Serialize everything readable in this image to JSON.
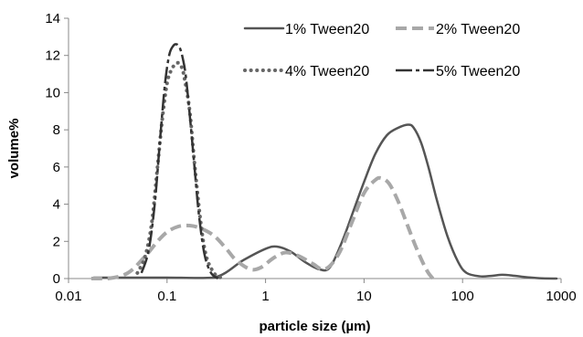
{
  "chart_data": {
    "type": "line",
    "xlabel": "particle size (µm)",
    "ylabel": "volume%",
    "xscale": "log",
    "xlim": [
      0.01,
      1000
    ],
    "ylim": [
      0,
      14
    ],
    "x_ticks": [
      {
        "value": 0.01,
        "label": "0.01"
      },
      {
        "value": 0.1,
        "label": "0.1"
      },
      {
        "value": 1,
        "label": "1"
      },
      {
        "value": 10,
        "label": "10"
      },
      {
        "value": 100,
        "label": "100"
      },
      {
        "value": 1000,
        "label": "1000"
      }
    ],
    "y_ticks": [
      {
        "value": 0,
        "label": "0"
      },
      {
        "value": 2,
        "label": "2"
      },
      {
        "value": 4,
        "label": "4"
      },
      {
        "value": 6,
        "label": "6"
      },
      {
        "value": 8,
        "label": "8"
      },
      {
        "value": 10,
        "label": "10"
      },
      {
        "value": 12,
        "label": "12"
      },
      {
        "value": 14,
        "label": "14"
      }
    ],
    "grid": false,
    "legend_position": "top-right",
    "series": [
      {
        "name": "1% Tween20",
        "style": "solid",
        "color": "#555555",
        "x": [
          0.018,
          0.05,
          0.1,
          0.3,
          0.6,
          1.0,
          1.3,
          1.8,
          2.5,
          3.5,
          4.5,
          6,
          8,
          10,
          13,
          17,
          22,
          28,
          32,
          38,
          45,
          55,
          70,
          90,
          110,
          150,
          200,
          250,
          300,
          400,
          600,
          900
        ],
        "y": [
          0.05,
          0.05,
          0.05,
          0.05,
          1.0,
          1.6,
          1.72,
          1.45,
          0.9,
          0.5,
          0.6,
          2.0,
          3.8,
          5.2,
          6.7,
          7.7,
          8.1,
          8.28,
          8.1,
          7.3,
          6.0,
          4.2,
          2.3,
          0.9,
          0.3,
          0.12,
          0.15,
          0.2,
          0.18,
          0.1,
          0.02,
          0.0
        ]
      },
      {
        "name": "2% Tween20",
        "style": "dashed",
        "color": "#a8a8a8",
        "x": [
          0.017,
          0.025,
          0.04,
          0.06,
          0.08,
          0.1,
          0.13,
          0.17,
          0.22,
          0.3,
          0.4,
          0.5,
          0.7,
          0.9,
          1.2,
          1.6,
          2.2,
          3,
          4,
          5.5,
          7.5,
          10,
          13,
          15,
          18,
          22,
          27,
          33,
          40,
          45,
          50
        ],
        "y": [
          0.0,
          0.0,
          0.3,
          1.2,
          2.0,
          2.5,
          2.8,
          2.85,
          2.7,
          2.3,
          1.6,
          1.0,
          0.5,
          0.6,
          1.1,
          1.4,
          1.2,
          0.8,
          0.5,
          1.3,
          3.0,
          4.6,
          5.3,
          5.4,
          5.1,
          4.2,
          3.0,
          1.8,
          0.8,
          0.3,
          0.0
        ]
      },
      {
        "name": "4% Tween20",
        "style": "dotted",
        "color": "#666666",
        "x": [
          0.05,
          0.06,
          0.07,
          0.08,
          0.09,
          0.1,
          0.11,
          0.12,
          0.13,
          0.14,
          0.15,
          0.17,
          0.19,
          0.22,
          0.25,
          0.3,
          0.35
        ],
        "y": [
          0.3,
          1.2,
          3.0,
          6.0,
          8.7,
          10.5,
          11.2,
          11.5,
          11.6,
          11.4,
          10.8,
          9.0,
          6.2,
          3.0,
          1.2,
          0.3,
          0.05
        ]
      },
      {
        "name": "5% Tween20",
        "style": "longdash",
        "color": "#333333",
        "x": [
          0.055,
          0.065,
          0.075,
          0.085,
          0.095,
          0.105,
          0.115,
          0.125,
          0.135,
          0.145,
          0.155,
          0.17,
          0.19,
          0.21,
          0.24,
          0.28,
          0.33
        ],
        "y": [
          0.3,
          1.5,
          4.0,
          7.5,
          10.4,
          12.0,
          12.5,
          12.6,
          12.4,
          11.8,
          10.9,
          8.8,
          6.0,
          3.5,
          1.3,
          0.3,
          0.0
        ]
      }
    ]
  }
}
